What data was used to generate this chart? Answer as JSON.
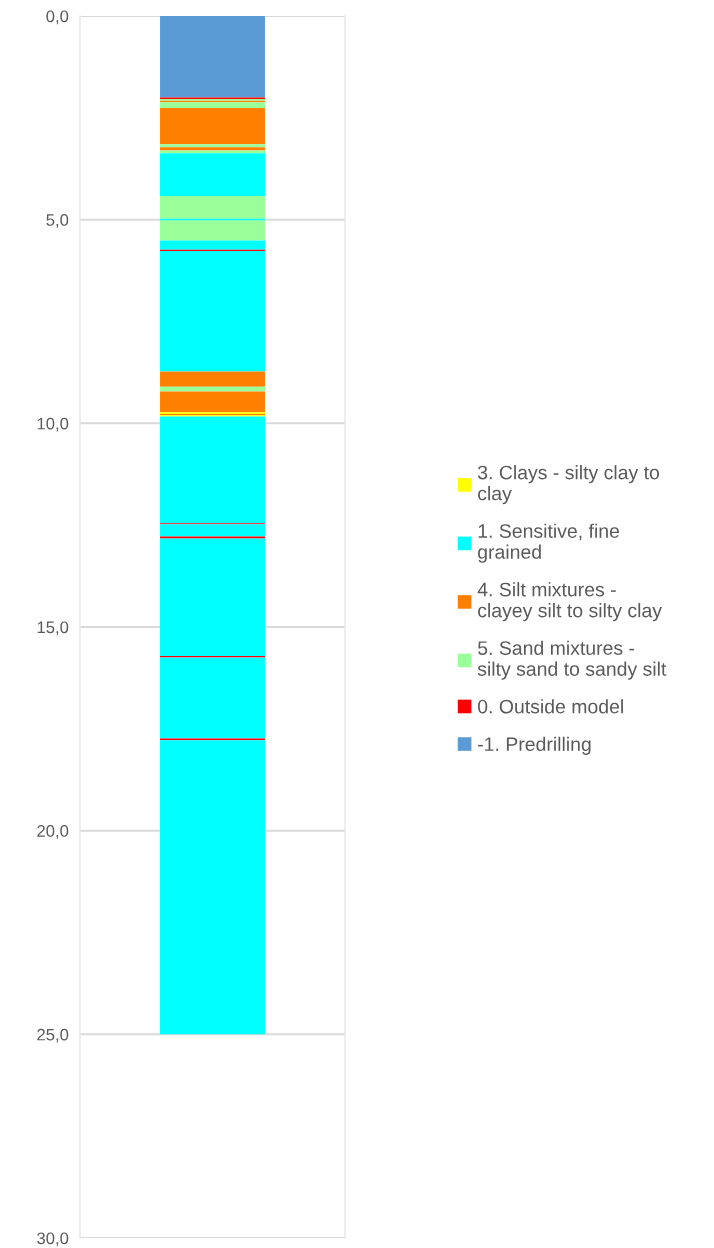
{
  "chart_data": {
    "type": "bar",
    "stacked": true,
    "categories": [
      null
    ],
    "series": [
      {
        "name": "-1. Predrilling",
        "color": "#5b9bd5",
        "values": [
          2.0
        ]
      },
      {
        "name": "0. Outside model",
        "color": "#ff0000",
        "values": [
          0.04
        ]
      },
      {
        "name": "5. Sand mixtures -\nsilty sand to sandy silt",
        "color": "#99ff99",
        "values": [
          0.04
        ]
      },
      {
        "name": "4. Silt mixtures -\nclayey silt to silty clay",
        "color": "#ff8000",
        "values": [
          0.04
        ]
      },
      {
        "color": "#99ff99",
        "values": [
          0.14
        ]
      },
      {
        "color": "#ff8000",
        "values": [
          0.89
        ]
      },
      {
        "color": "#99ff99",
        "values": [
          0.07
        ]
      },
      {
        "color": "#ff8000",
        "values": [
          0.08
        ]
      },
      {
        "color": "#99ff99",
        "values": [
          0.07
        ]
      },
      {
        "name": "1. Sensitive, fine\ngrained",
        "color": "#00ffff",
        "values": [
          1.05
        ]
      },
      {
        "color": "#99ff99",
        "values": [
          0.56
        ]
      },
      {
        "color": "#00ffff",
        "values": [
          0.04
        ]
      },
      {
        "color": "#99ff99",
        "values": [
          0.49
        ]
      },
      {
        "color": "#00ffff",
        "values": [
          0.23
        ]
      },
      {
        "color": "#ff0000",
        "values": [
          0.03
        ]
      },
      {
        "color": "#00ffff",
        "values": [
          2.96
        ]
      },
      {
        "color": "#ff8000",
        "values": [
          0.37
        ]
      },
      {
        "color": "#99ff99",
        "values": [
          0.12
        ]
      },
      {
        "color": "#ff8000",
        "values": [
          0.51
        ]
      },
      {
        "name": "3. Clays - silty clay to\nclay",
        "color": "#ffff00",
        "values": [
          0.04
        ]
      },
      {
        "color": "#ff8000",
        "values": [
          0.03
        ]
      },
      {
        "color": "#ffff00",
        "values": [
          0.03
        ]
      },
      {
        "color": "#00ffff",
        "values": [
          2.62
        ]
      },
      {
        "color": "#ff0000",
        "values": [
          0.03
        ]
      },
      {
        "color": "#00ffff",
        "values": [
          0.3
        ]
      },
      {
        "color": "#ff0000",
        "values": [
          0.05
        ]
      },
      {
        "color": "#00ffff",
        "values": [
          2.88
        ]
      },
      {
        "color": "#ff0000",
        "values": [
          0.04
        ]
      },
      {
        "color": "#00ffff",
        "values": [
          1.99
        ]
      },
      {
        "color": "#ff0000",
        "values": [
          0.04
        ]
      },
      {
        "color": "#00ffff",
        "values": [
          7.22
        ]
      }
    ],
    "ylim": [
      30,
      0
    ],
    "yticks": [
      {
        "value": 0,
        "label": "0,0"
      },
      {
        "value": 5,
        "label": "5,0"
      },
      {
        "value": 10,
        "label": "10,0"
      },
      {
        "value": 15,
        "label": "15,0"
      },
      {
        "value": 20,
        "label": "20,0"
      },
      {
        "value": 25,
        "label": "25,0"
      },
      {
        "value": 30,
        "label": "30,0"
      }
    ],
    "tick_labels": "y",
    "grid": "y",
    "legend": "right"
  }
}
